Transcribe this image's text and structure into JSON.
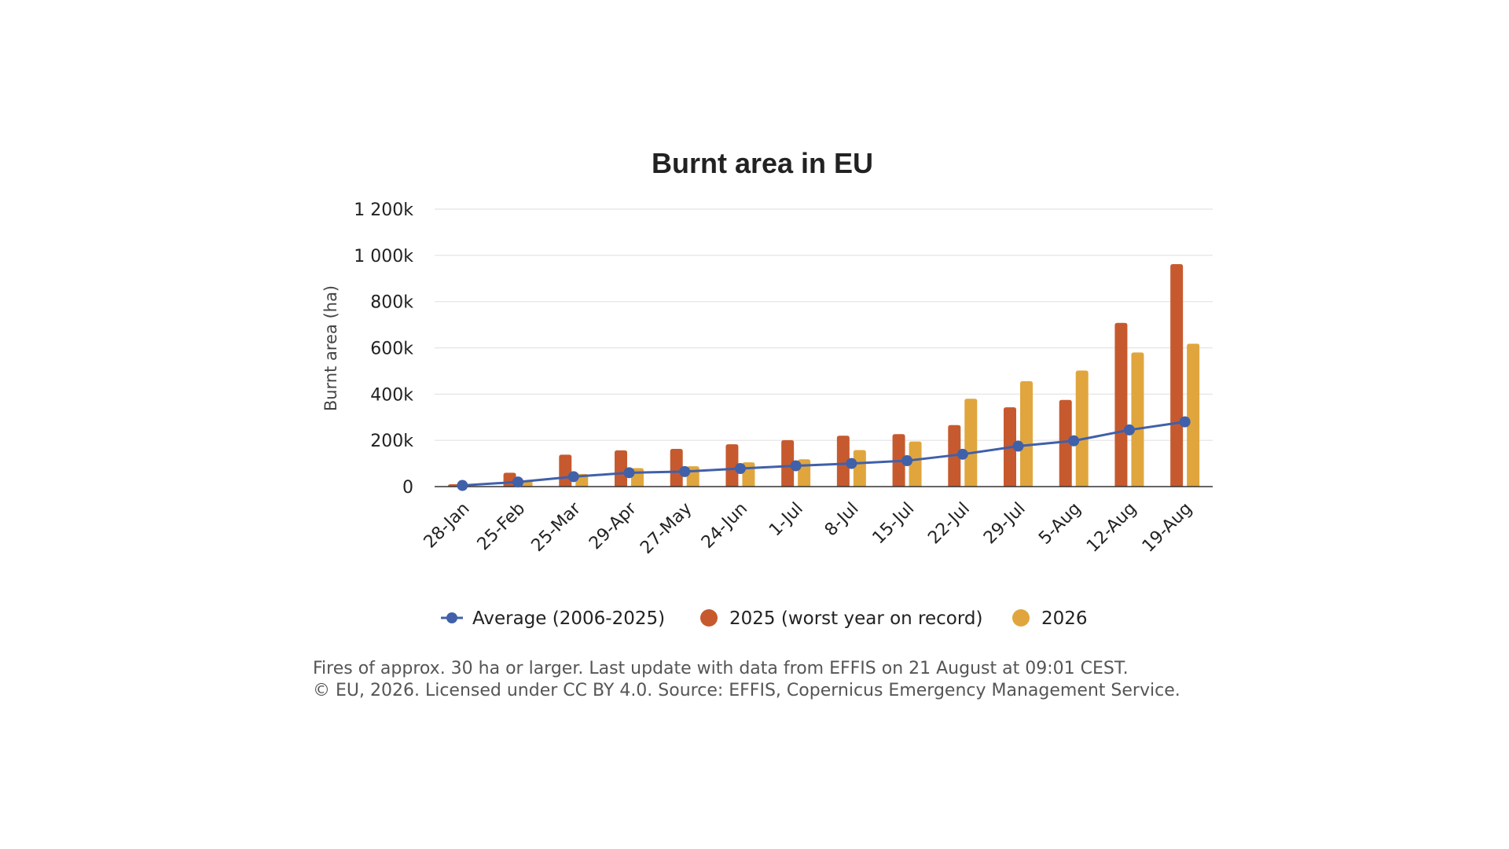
{
  "chart_data": {
    "type": "bar",
    "title": "Burnt area in EU",
    "xlabel": "",
    "ylabel": "Burnt area (ha)",
    "ylim": [
      0,
      1200000
    ],
    "yticks": [
      0,
      200000,
      400000,
      600000,
      800000,
      1000000,
      1200000
    ],
    "ytick_labels": [
      "0",
      "200k",
      "400k",
      "600k",
      "800k",
      "1 000k",
      "1 200k"
    ],
    "grid": true,
    "legend_position": "bottom",
    "categories": [
      "28-Jan",
      "25-Feb",
      "25-Mar",
      "29-Apr",
      "27-May",
      "24-Jun",
      "1-Jul",
      "8-Jul",
      "15-Jul",
      "22-Jul",
      "29-Jul",
      "5-Aug",
      "12-Aug",
      "19-Aug"
    ],
    "series": [
      {
        "name": "Average (2006-2025)",
        "kind": "line",
        "color": "#4060AA",
        "values": [
          5000,
          20000,
          43000,
          60000,
          65000,
          78000,
          90000,
          100000,
          112000,
          140000,
          175000,
          198000,
          245000,
          280000
        ]
      },
      {
        "name": "2025 (worst year on record)",
        "kind": "bar",
        "color": "#C65A2E",
        "values": [
          10000,
          60000,
          138000,
          157000,
          163000,
          183000,
          201000,
          220000,
          227000,
          266000,
          343000,
          375000,
          708000,
          962000
        ]
      },
      {
        "name": "2026",
        "kind": "bar",
        "color": "#E0A63D",
        "values": [
          2000,
          25000,
          55000,
          80000,
          88000,
          105000,
          118000,
          158000,
          195000,
          380000,
          456000,
          502000,
          580000,
          618000
        ]
      }
    ]
  },
  "footnote": {
    "line1": "Fires of approx. 30 ha or larger. Last update with data from EFFIS on 21 August at 09:01 CEST.",
    "line2": "© EU, 2026. Licensed under CC BY 4.0. Source: EFFIS, Copernicus Emergency Management Service."
  }
}
